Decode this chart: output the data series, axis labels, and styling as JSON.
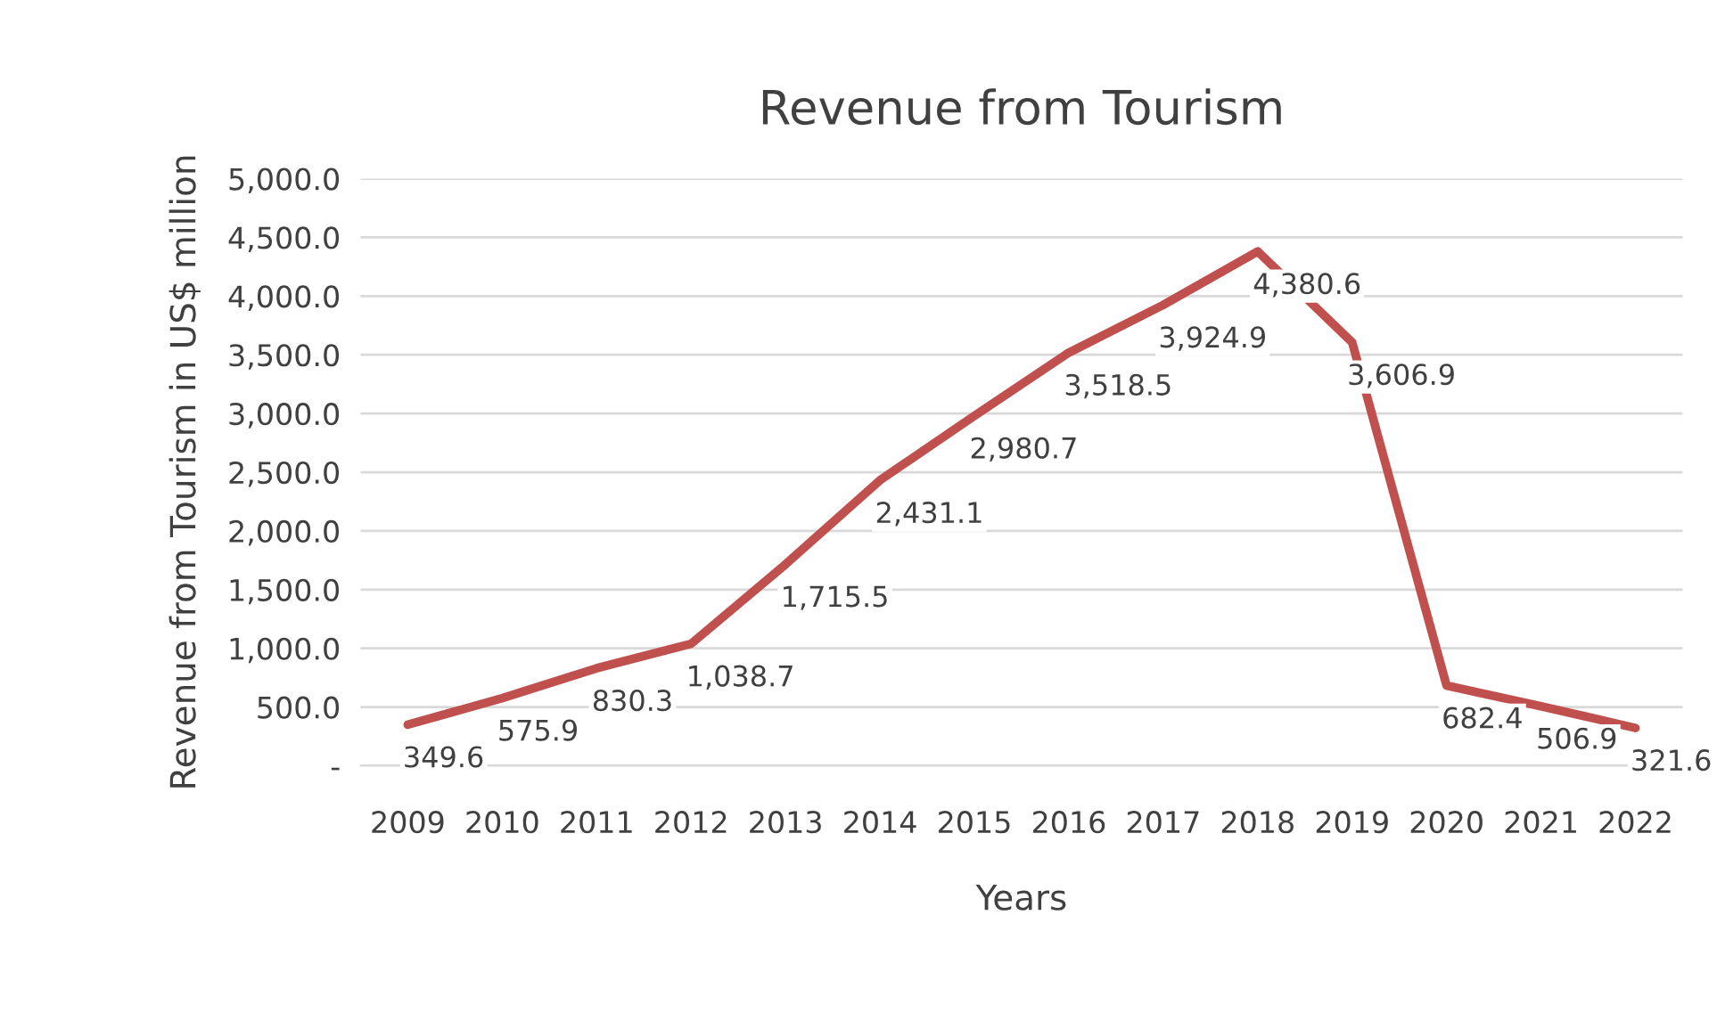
{
  "chart_data": {
    "type": "line",
    "title": "Revenue from Tourism",
    "xlabel": "Years",
    "ylabel": "Revenue from Tourism in US$ million",
    "categories": [
      "2009",
      "2010",
      "2011",
      "2012",
      "2013",
      "2014",
      "2015",
      "2016",
      "2017",
      "2018",
      "2019",
      "2020",
      "2021",
      "2022"
    ],
    "series": [
      {
        "color": "#c0504d",
        "values": [
          349.6,
          575.9,
          830.3,
          1038.7,
          1715.5,
          2431.1,
          2980.7,
          3518.5,
          3924.9,
          4380.6,
          3606.9,
          682.4,
          506.9,
          321.6
        ],
        "value_labels": [
          "349.6",
          "575.9",
          "830.3",
          "1,038.7",
          "1,715.5",
          "2,431.1",
          "2,980.7",
          "3,518.5",
          "3,924.9",
          "4,380.6",
          "3,606.9",
          "682.4",
          "506.9",
          "321.6"
        ]
      }
    ],
    "ylim": [
      0,
      5000
    ],
    "yticks": [
      {
        "value": 0,
        "label": "-"
      },
      {
        "value": 500,
        "label": "500.0"
      },
      {
        "value": 1000,
        "label": "1,000.0"
      },
      {
        "value": 1500,
        "label": "1,500.0"
      },
      {
        "value": 2000,
        "label": "2,000.0"
      },
      {
        "value": 2500,
        "label": "2,500.0"
      },
      {
        "value": 3000,
        "label": "3,000.0"
      },
      {
        "value": 3500,
        "label": "3,500.0"
      },
      {
        "value": 4000,
        "label": "4,000.0"
      },
      {
        "value": 4500,
        "label": "4,500.0"
      },
      {
        "value": 5000,
        "label": "5,000.0"
      }
    ],
    "grid": "y",
    "legend": false,
    "marker": "none",
    "line_style": "solid"
  }
}
